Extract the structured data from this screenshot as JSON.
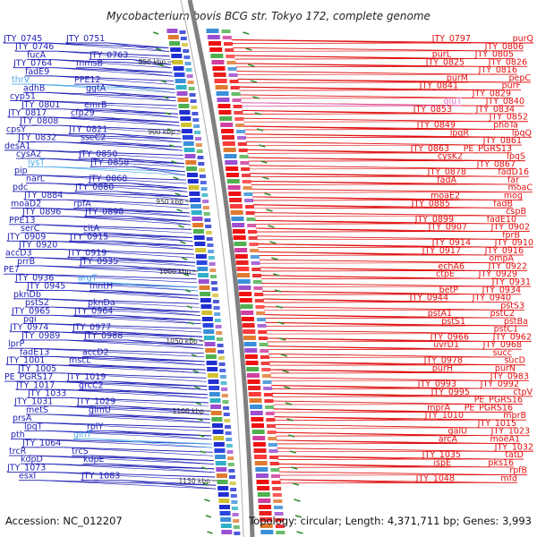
{
  "title": "Mycobacterium bovis BCG str. Tokyo 172, complete genome",
  "accession": "Accession: NC_012207",
  "summary": "Topology: circular; Length: 4,371,711 bp; Genes: 3,993",
  "colors": {
    "left_label": "#1f1fb4",
    "left_highlight": "#4aa8e8",
    "right_label": "#e01010",
    "right_highlight": "#e070c8",
    "backbone": "#7f7f7f",
    "green_tick": "#2e8b2e"
  },
  "kbp_marks": [
    "850 kbp",
    "900 kbp",
    "950 kbp",
    "1000 kbp",
    "1050 kbp",
    "1100 kbp",
    "1150 kbp"
  ],
  "left_genes": [
    "JTY_0745",
    "JTY_0751",
    "JTY_0746",
    "fucA",
    "JTY_0763",
    "JTY_0764",
    "mmsB",
    "fadE9",
    "thrV",
    "PPE12",
    "adhB",
    "ggtA",
    "cyp51",
    "JTY_0801",
    "emrB",
    "JTY_0817",
    "cfp29",
    "JTY_0808",
    "cpsY",
    "JTY_0821",
    "JTY_0832",
    "sseC2",
    "desA1",
    "cysA2",
    "JTY_0850",
    "lysT",
    "JTY_0858",
    "pip",
    "narL",
    "JTY_0868",
    "pdc",
    "JTY_0880",
    "JTY_0884",
    "moaD2",
    "rpfA",
    "JTY_0896",
    "JTY_0898",
    "PPE13",
    "serC",
    "citA",
    "JTY_0909",
    "JTY_0915",
    "JTY_0920",
    "accD3",
    "JTY_0919",
    "prrB",
    "JTY_0935",
    "PE7",
    "JTY_0936",
    "argT",
    "JTY_0945",
    "mntH",
    "pknDb",
    "pstS2",
    "pknDa",
    "JTY_0965",
    "JTY_0964",
    "pgi",
    "JTY_0974",
    "JTY_0977",
    "JTY_0989",
    "JTY_0988",
    "lprP",
    "fadE13",
    "accD2",
    "JTY_1001",
    "mscL",
    "JTY_1005",
    "PE_PGRS17",
    "JTY_1019",
    "JTY_1017",
    "grcC2",
    "JTY_1033",
    "JTY_1031",
    "JTY_1029",
    "metS",
    "glmU",
    "prsA",
    "lpqT",
    "rplY",
    "pth",
    "glnT",
    "JTY_1064",
    "trcR",
    "trcS",
    "kdpD",
    "kdpE",
    "JTY_1073",
    "esxI",
    "JTY_1083"
  ],
  "right_genes": [
    "purQ",
    "JTY_0797",
    "JTY_0806",
    "JTY_0805",
    "purL",
    "JTY_0826",
    "JTY_0825",
    "JTY_0816",
    "pepC",
    "purM",
    "purF",
    "JTY_0841",
    "JTY_0829",
    "JTY_0840",
    "gluT",
    "JTY_0834",
    "JTY_0853",
    "JTY_0852",
    "phoTa",
    "JTY_0849",
    "lpqQ",
    "lpqR",
    "JTY_0861",
    "PE_PGRS13",
    "JTY_0863",
    "lpqS",
    "cysK2",
    "JTY_0867",
    "fadD16",
    "JTY_0878",
    "far",
    "fadA",
    "moaC",
    "mog",
    "moaE2",
    "fadB",
    "JTY_0885",
    "cspB",
    "fadE10",
    "JTY_0899",
    "JTY_0902",
    "JTY_0907",
    "fprB",
    "JTY_0910",
    "JTY_0914",
    "JTY_0916",
    "JTY_0917",
    "ompA",
    "JTY_0922",
    "echA6",
    "JTY_0929",
    "ctpE",
    "JTY_0931",
    "JTY_0934",
    "betP",
    "JTY_0940",
    "JTY_0944",
    "pstS3",
    "pstC2",
    "pstA1",
    "pstBa",
    "pstS1",
    "pstC1",
    "JTY_0962",
    "JTY_0966",
    "JTY_0968",
    "uvrD1",
    "succ",
    "sucD",
    "JTY_0978",
    "purN",
    "purH",
    "JTY_0983",
    "JTY_0992",
    "JTY_0993",
    "ctpV",
    "JTY_0995",
    "PE_PGRS16",
    "PE_PGRS16",
    "mprA",
    "mprB",
    "JTY_1010",
    "JTY_1015",
    "JTY_1023",
    "galU",
    "moeA1",
    "arcA",
    "JTY_1032",
    "tatD",
    "JTY_1035",
    "pks16",
    "ispE",
    "rpfB",
    "mfd",
    "JTY_1048"
  ]
}
